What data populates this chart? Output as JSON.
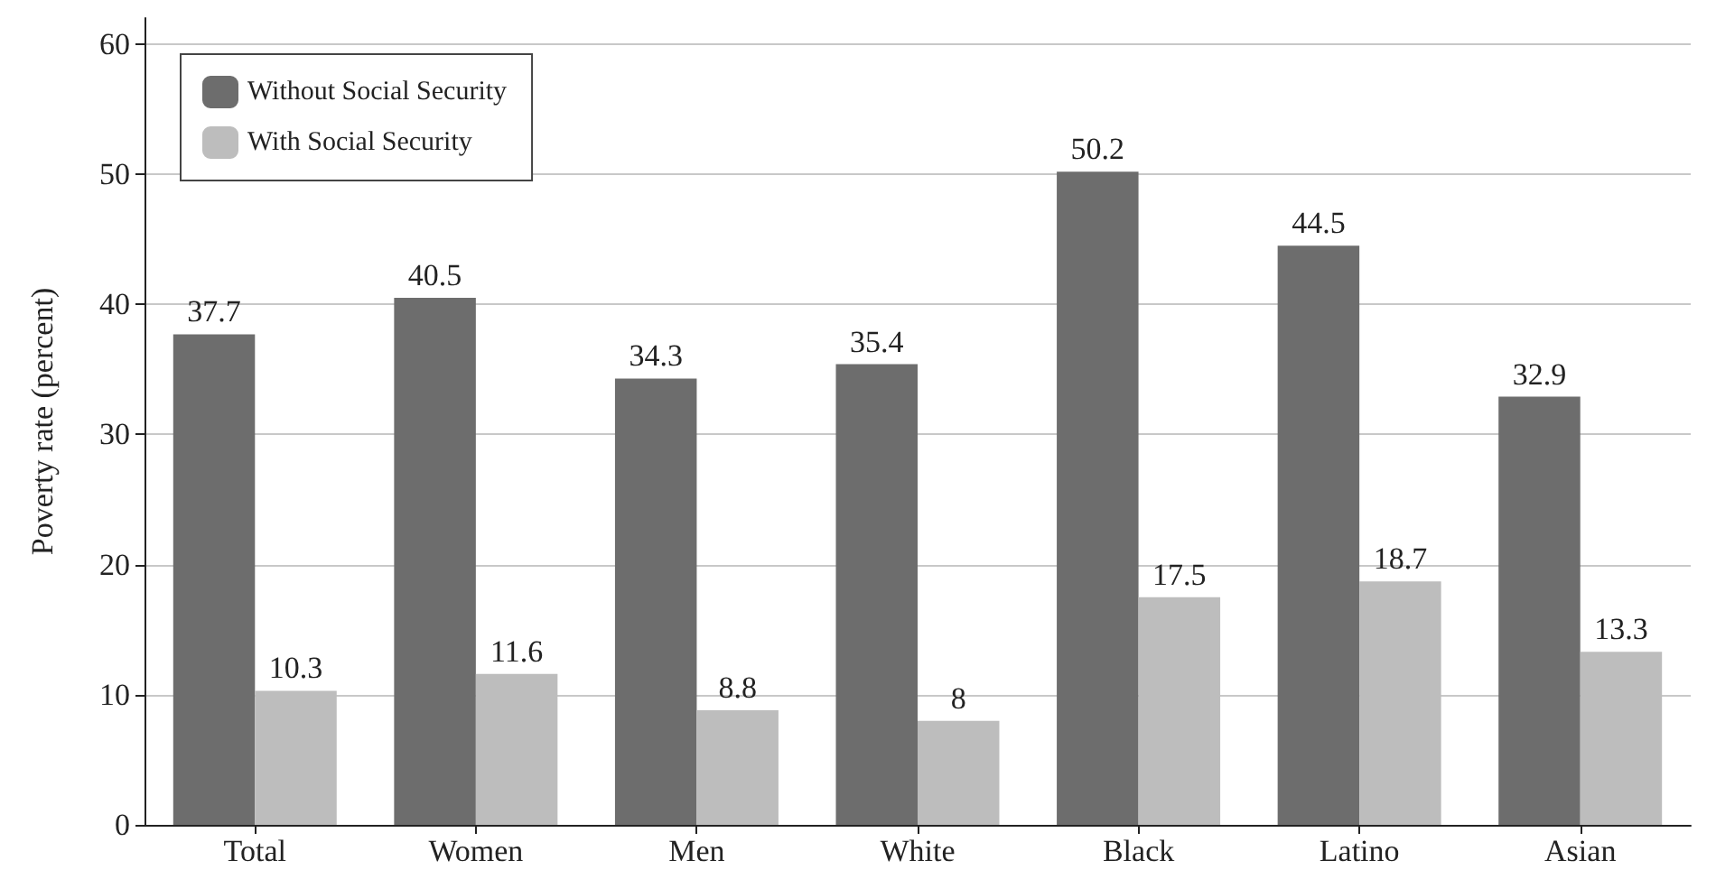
{
  "chart_data": {
    "type": "bar",
    "ylabel": "Poverty rate (percent)",
    "categories": [
      "Total",
      "Women",
      "Men",
      "White",
      "Black",
      "Latino",
      "Asian"
    ],
    "series": [
      {
        "name": "Without Social Security",
        "color": "#6d6d6d",
        "values": [
          37.7,
          40.5,
          34.3,
          35.4,
          50.2,
          44.5,
          32.9
        ]
      },
      {
        "name": "With Social Security",
        "color": "#bdbdbd",
        "values": [
          10.3,
          11.6,
          8.8,
          8,
          17.5,
          18.7,
          13.3
        ]
      }
    ],
    "ylim": [
      0,
      62
    ],
    "yticks": [
      0,
      10,
      20,
      30,
      40,
      50,
      60
    ],
    "grid": "y",
    "legend": "top left",
    "data_labels": true
  }
}
